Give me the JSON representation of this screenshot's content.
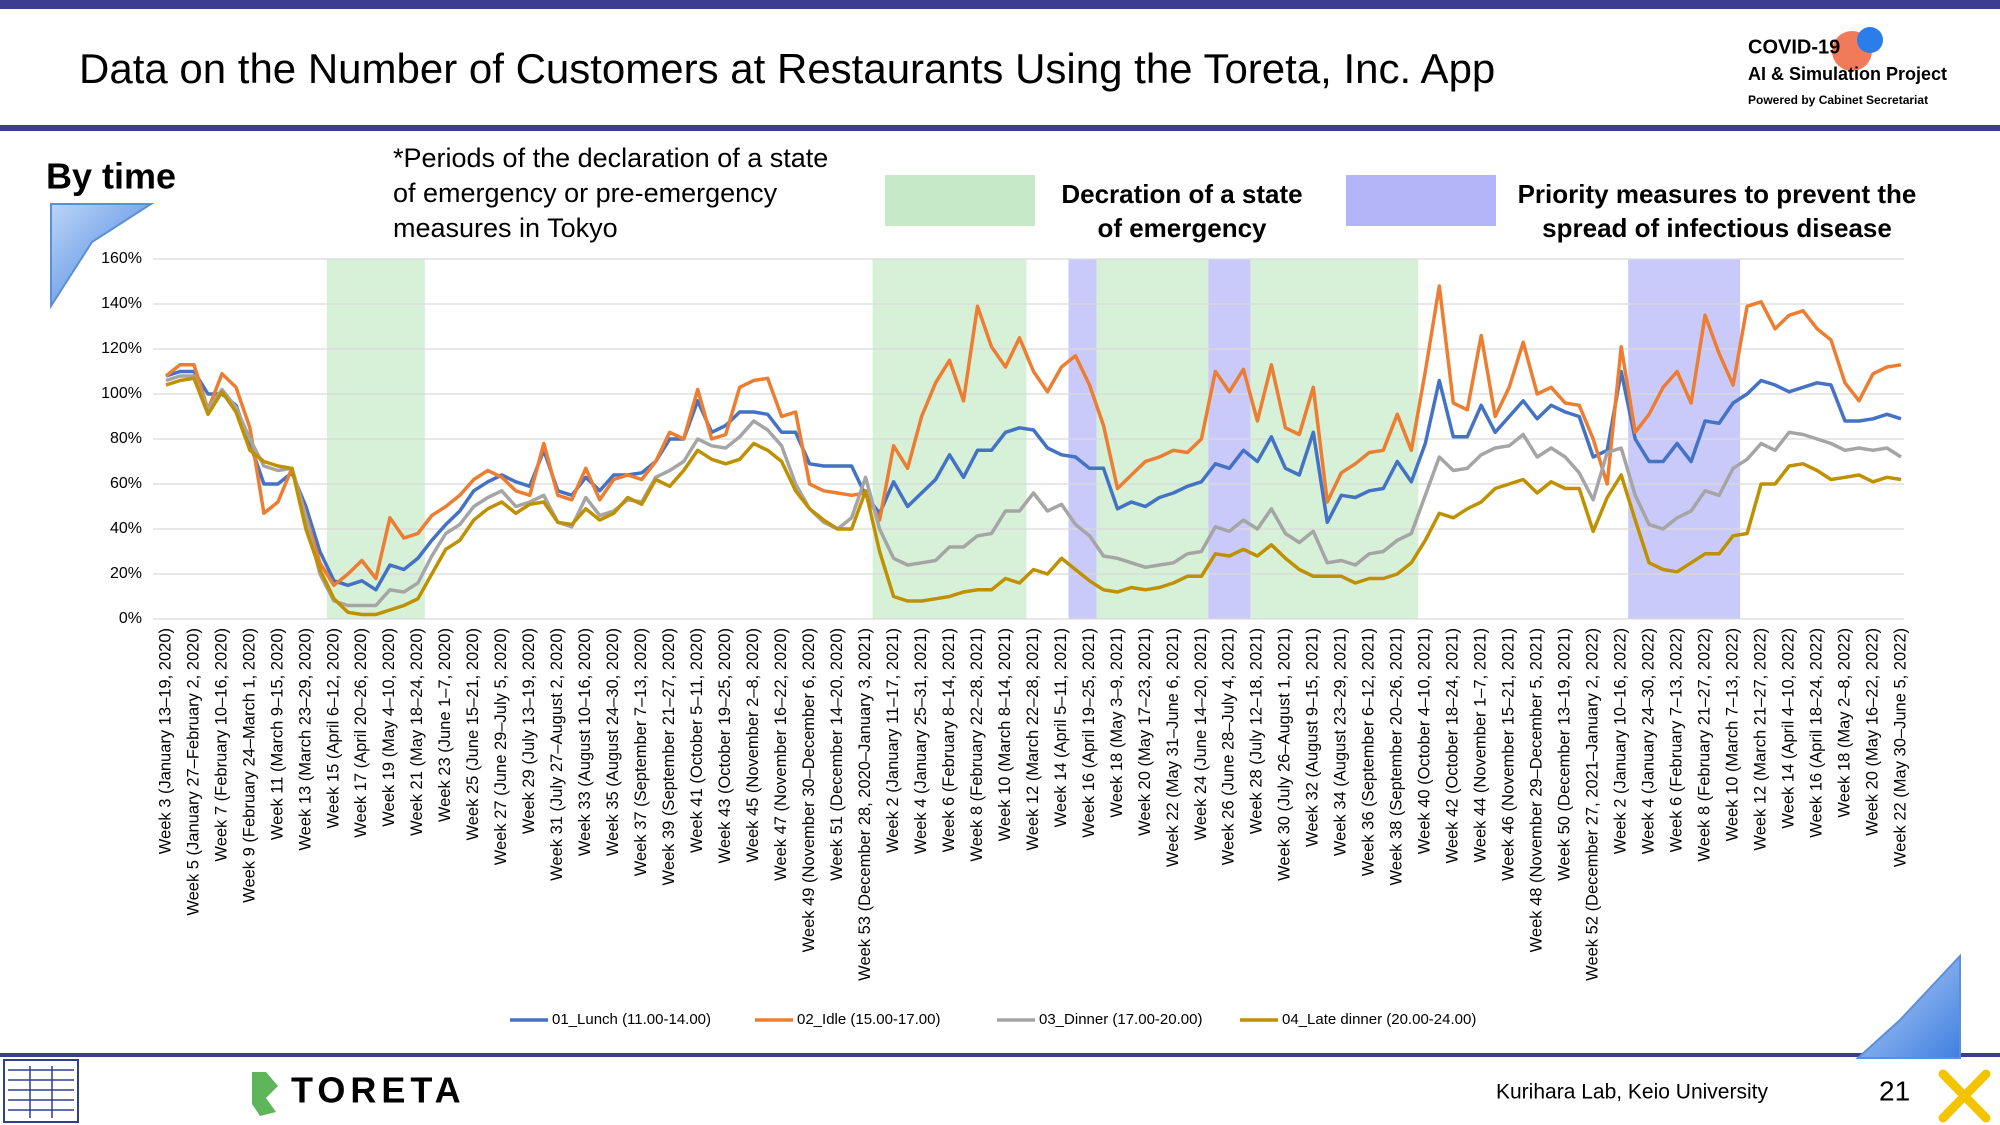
{
  "header": {
    "title": "Data on the Number of Customers at Restaurants Using the Toreta, Inc. App",
    "logo": [
      "COVID-19",
      "AI & Simulation Project",
      "Powered by Cabinet Secretariat"
    ]
  },
  "section": "By time",
  "note": [
    "*Periods of the declaration of a state",
    "of emergency or pre-emergency",
    "measures in Tokyo"
  ],
  "footer": {
    "brand": "TORETA",
    "lab": "Kurihara Lab, Keio University",
    "page": "21"
  },
  "chart_data": {
    "type": "line",
    "categories": [
      "Week 3 (January 13–19, 2020)",
      null,
      "Week 5 (January 27–February 2, 2020)",
      null,
      "Week 7 (February 10–16, 2020)",
      null,
      "Week 9 (February 24–March 1, 2020)",
      null,
      "Week 11 (March 9–15, 2020)",
      null,
      "Week 13 (March 23–29, 2020)",
      null,
      "Week 15 (April 6–12, 2020)",
      null,
      "Week 17 (April 20–26, 2020)",
      null,
      "Week 19 (May 4–10, 2020)",
      null,
      "Week 21 (May 18–24, 2020)",
      null,
      "Week 23 (June 1–7, 2020)",
      null,
      "Week 25 (June 15–21, 2020)",
      null,
      "Week 27 (June 29–July 5, 2020)",
      null,
      "Week 29 (July 13–19, 2020)",
      null,
      "Week 31 (July 27–August 2, 2020)",
      null,
      "Week 33 (August 10–16, 2020)",
      null,
      "Week 35 (August 24–30, 2020)",
      null,
      "Week 37 (September 7–13, 2020)",
      null,
      "Week 39 (September 21–27, 2020)",
      null,
      "Week 41 (October 5–11, 2020)",
      null,
      "Week 43 (October 19–25, 2020)",
      null,
      "Week 45 (November 2–8, 2020)",
      null,
      "Week 47 (November 16–22, 2020)",
      null,
      "Week 49 (November 30–December 6, 2020)",
      null,
      "Week 51 (December 14–20, 2020)",
      null,
      "Week 53 (December 28, 2020–January 3, 2021)",
      null,
      "Week 2 (January 11–17, 2021)",
      null,
      "Week 4 (January 25–31, 2021)",
      null,
      "Week 6 (February 8–14, 2021)",
      null,
      "Week 8 (February 22–28, 2021)",
      null,
      "Week 10 (March 8–14, 2021)",
      null,
      "Week 12 (March 22–28, 2021)",
      null,
      "Week 14 (April 5–11, 2021)",
      null,
      "Week 16 (April 19–25, 2021)",
      null,
      "Week 18 (May 3–9, 2021)",
      null,
      "Week 20 (May 17–23, 2021)",
      null,
      "Week 22 (May 31–June 6, 2021)",
      null,
      "Week 24 (June 14–20, 2021)",
      null,
      "Week 26 (June 28–July 4, 2021)",
      null,
      "Week 28 (July 12–18, 2021)",
      null,
      "Week 30 (July 26–August 1, 2021)",
      null,
      "Week 32 (August 9–15, 2021)",
      null,
      "Week 34 (August 23–29, 2021)",
      null,
      "Week 36 (September 6–12, 2021)",
      null,
      "Week 38 (September 20–26, 2021)",
      null,
      "Week 40 (October 4–10, 2021)",
      null,
      "Week 42 (October 18–24, 2021)",
      null,
      "Week 44 (November 1–7, 2021)",
      null,
      "Week 46 (November 15–21, 2021)",
      null,
      "Week 48 (November 29–December 5, 2021)",
      null,
      "Week 50 (December 13–19, 2021)",
      null,
      "Week 52 (December 27, 2021–January 2, 2022)",
      null,
      "Week 2 (January 10–16, 2022)",
      null,
      "Week 4 (January 24–30, 2022)",
      null,
      "Week 6 (February 7–13, 2022)",
      null,
      "Week 8 (February 21–27, 2022)",
      null,
      "Week 10 (March 7–13, 2022)",
      null,
      "Week 12 (March 21–27, 2022)",
      null,
      "Week 14 (April 4–10, 2022)",
      null,
      "Week 16 (April 18–24, 2022)",
      null,
      "Week 18 (May 2–8, 2022)",
      null,
      "Week 20 (May 16–22, 2022)",
      null,
      "Week 22 (May 30–June 5, 2022)"
    ],
    "series": [
      {
        "name": "01_Lunch (11.00-14.00)",
        "color": "#4472c4",
        "values": [
          108,
          110,
          110,
          100,
          100,
          95,
          78,
          60,
          60,
          65,
          50,
          30,
          17,
          15,
          17,
          13,
          24,
          22,
          27,
          35,
          42,
          48,
          57,
          61,
          64,
          61,
          59,
          75,
          57,
          55,
          63,
          57,
          64,
          64,
          65,
          70,
          80,
          80,
          97,
          83,
          86,
          92,
          92,
          91,
          83,
          83,
          69,
          68,
          68,
          68,
          55,
          47,
          61,
          50,
          56,
          62,
          73,
          63,
          75,
          75,
          83,
          85,
          84,
          76,
          73,
          72,
          67,
          67,
          49,
          52,
          50,
          54,
          56,
          59,
          61,
          69,
          67,
          75,
          70,
          81,
          67,
          64,
          83,
          43,
          55,
          54,
          57,
          58,
          70,
          61,
          78,
          106,
          81,
          81,
          95,
          83,
          90,
          97,
          89,
          95,
          92,
          90,
          72,
          75,
          110,
          80,
          70,
          70,
          78,
          70,
          88,
          87,
          96,
          100,
          106,
          104,
          101,
          103,
          105,
          104,
          88,
          88,
          89,
          91,
          89
        ]
      },
      {
        "name": "02_Idle (15.00-17.00)",
        "color": "#ed7d31",
        "values": [
          108,
          113,
          113,
          93,
          109,
          103,
          85,
          47,
          52,
          67,
          46,
          25,
          15,
          20,
          26,
          18,
          45,
          36,
          38,
          46,
          50,
          55,
          62,
          66,
          63,
          57,
          55,
          78,
          55,
          53,
          67,
          53,
          62,
          64,
          62,
          70,
          83,
          80,
          102,
          80,
          82,
          103,
          106,
          107,
          90,
          92,
          60,
          57,
          56,
          55,
          56,
          44,
          77,
          67,
          90,
          105,
          115,
          97,
          139,
          121,
          112,
          125,
          110,
          101,
          112,
          117,
          104,
          86,
          58,
          64,
          70,
          72,
          75,
          74,
          80,
          110,
          101,
          111,
          88,
          113,
          85,
          82,
          103,
          52,
          65,
          69,
          74,
          75,
          91,
          75,
          110,
          148,
          96,
          93,
          126,
          90,
          103,
          123,
          100,
          103,
          96,
          95,
          80,
          60,
          121,
          83,
          91,
          103,
          110,
          96,
          135,
          118,
          104,
          139,
          141,
          129,
          135,
          137,
          129,
          124,
          105,
          97,
          109,
          112,
          113
        ]
      },
      {
        "name": "03_Dinner (17.00-20.00)",
        "color": "#a5a5a5",
        "values": [
          106,
          108,
          108,
          93,
          102,
          94,
          80,
          68,
          66,
          67,
          45,
          20,
          8,
          6,
          6,
          6,
          13,
          12,
          16,
          28,
          38,
          42,
          50,
          54,
          57,
          50,
          52,
          55,
          43,
          41,
          54,
          46,
          48,
          53,
          52,
          63,
          66,
          70,
          80,
          77,
          76,
          81,
          88,
          84,
          77,
          60,
          49,
          43,
          40,
          45,
          63,
          40,
          27,
          24,
          25,
          26,
          32,
          32,
          37,
          38,
          48,
          48,
          56,
          48,
          51,
          42,
          37,
          28,
          27,
          25,
          23,
          24,
          25,
          29,
          30,
          41,
          39,
          44,
          40,
          49,
          38,
          34,
          39,
          25,
          26,
          24,
          29,
          30,
          35,
          38,
          55,
          72,
          66,
          67,
          73,
          76,
          77,
          82,
          72,
          76,
          72,
          65,
          53,
          74,
          76,
          55,
          42,
          40,
          45,
          48,
          57,
          55,
          67,
          71,
          78,
          75,
          83,
          82,
          80,
          78,
          75,
          76,
          75,
          76,
          72
        ]
      },
      {
        "name": "04_Late dinner (20.00-24.00)",
        "color": "#bf9000",
        "values": [
          104,
          106,
          107,
          91,
          101,
          92,
          75,
          70,
          68,
          67,
          40,
          22,
          9,
          3,
          2,
          2,
          4,
          6,
          9,
          20,
          31,
          35,
          44,
          49,
          52,
          47,
          51,
          52,
          43,
          42,
          49,
          44,
          47,
          54,
          51,
          62,
          59,
          66,
          75,
          71,
          69,
          71,
          78,
          75,
          70,
          57,
          49,
          44,
          40,
          40,
          57,
          30,
          10,
          8,
          8,
          9,
          10,
          12,
          13,
          13,
          18,
          16,
          22,
          20,
          27,
          22,
          17,
          13,
          12,
          14,
          13,
          14,
          16,
          19,
          19,
          29,
          28,
          31,
          28,
          33,
          27,
          22,
          19,
          19,
          19,
          16,
          18,
          18,
          20,
          25,
          35,
          47,
          45,
          49,
          52,
          58,
          60,
          62,
          56,
          61,
          58,
          58,
          39,
          54,
          64,
          44,
          25,
          22,
          21,
          25,
          29,
          29,
          37,
          38,
          60,
          60,
          68,
          69,
          66,
          62,
          63,
          64,
          61,
          63,
          62
        ]
      }
    ],
    "ylim": [
      0,
      160
    ],
    "yticks": [
      {
        "value": 0,
        "label": "0%"
      },
      {
        "value": 20,
        "label": "20%"
      },
      {
        "value": 40,
        "label": "40%"
      },
      {
        "value": 60,
        "label": "60%"
      },
      {
        "value": 80,
        "label": "80%"
      },
      {
        "value": 100,
        "label": "100%"
      },
      {
        "value": 120,
        "label": "120%"
      },
      {
        "value": 140,
        "label": "140%"
      },
      {
        "value": 160,
        "label": "160%"
      }
    ],
    "grid": true,
    "legend": "bottom",
    "period_legend": [
      {
        "lines": [
          "Decration of a state",
          "of emergency"
        ],
        "color": "#c6e9c8",
        "periods": [
          [
            12,
            18
          ],
          [
            51,
            61
          ],
          [
            67,
            74
          ],
          [
            78,
            89
          ]
        ]
      },
      {
        "lines": [
          "Priority measures to prevent the",
          "spread of infectious disease"
        ],
        "color": "#b4b4f8",
        "periods": [
          [
            65,
            66
          ],
          [
            75,
            77
          ],
          [
            105,
            112
          ]
        ]
      }
    ]
  }
}
